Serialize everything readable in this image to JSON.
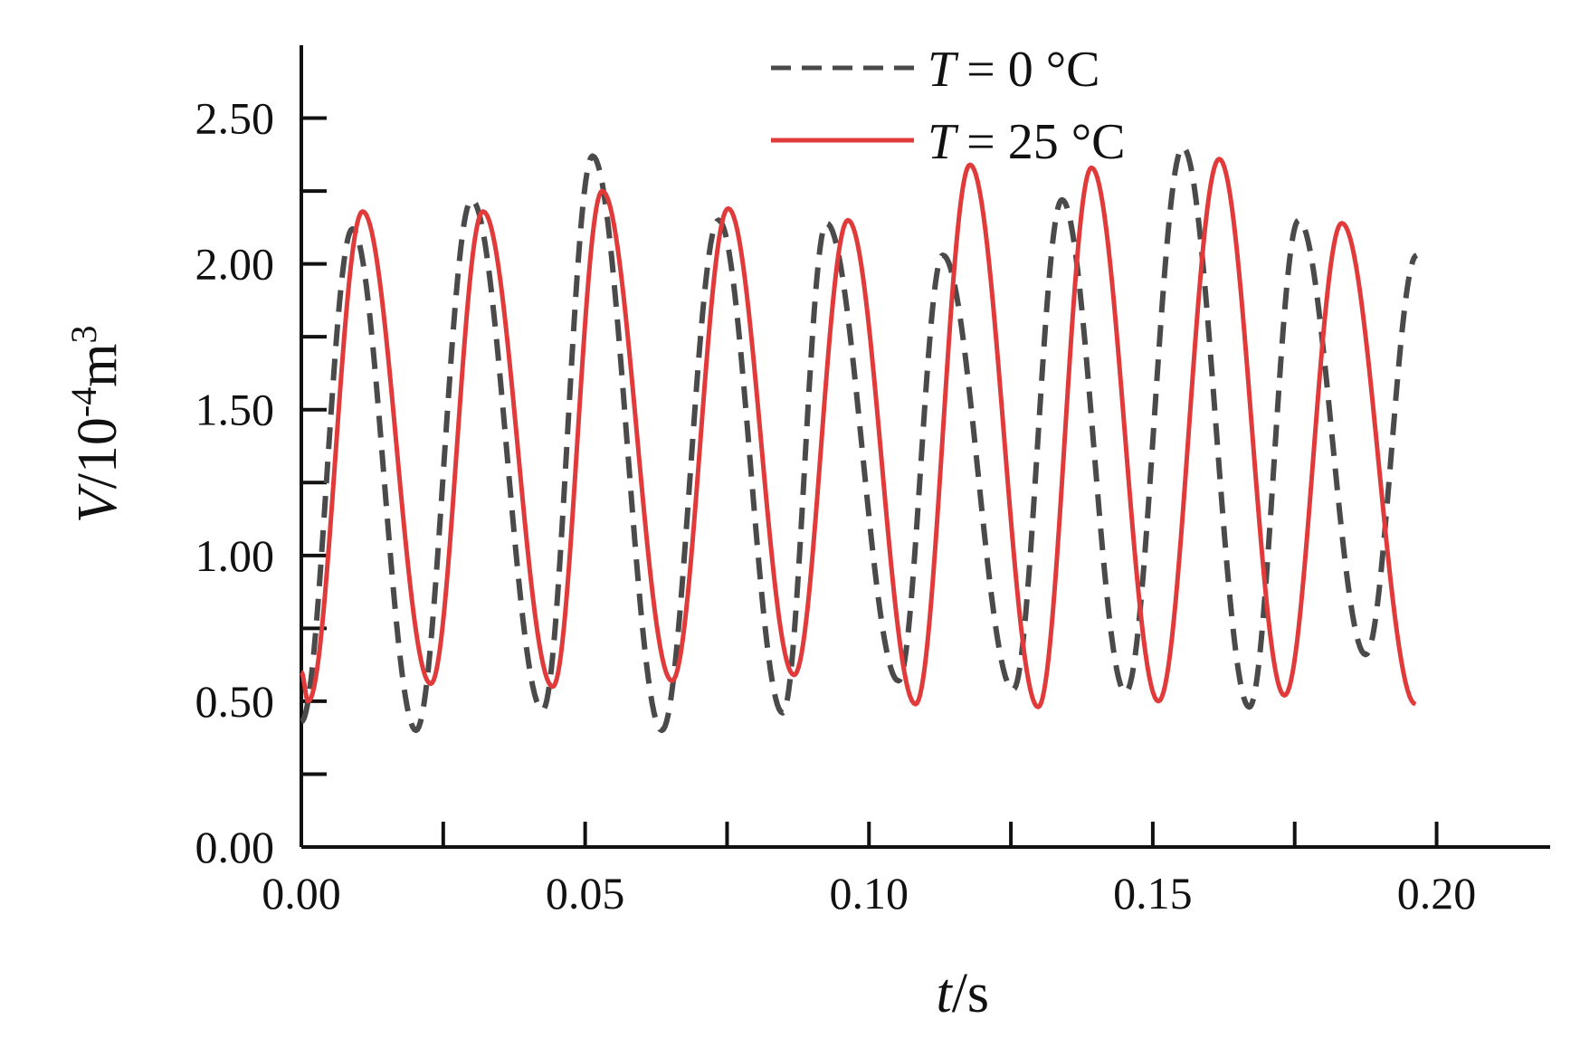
{
  "chart_data": {
    "type": "line",
    "xlabel": {
      "var": "t",
      "unit": "/s"
    },
    "ylabel": {
      "var": "V",
      "unit_base": "/10",
      "unit_exp": "-4",
      "unit_mid": "m",
      "unit_exp2": "3"
    },
    "xlim": [
      0,
      0.22
    ],
    "ylim": [
      0,
      2.75
    ],
    "x_ticks": [
      "0.00",
      "0.05",
      "0.10",
      "0.15",
      "0.20"
    ],
    "x_tick_values": [
      0,
      0.05,
      0.1,
      0.15,
      0.2
    ],
    "x_minor_ticks": [
      0.025,
      0.075,
      0.125,
      0.175
    ],
    "y_ticks": [
      "0.00",
      "0.50",
      "1.00",
      "1.50",
      "2.00",
      "2.50"
    ],
    "y_tick_values": [
      0,
      0.5,
      1.0,
      1.5,
      2.0,
      2.5
    ],
    "y_minor_ticks": [
      0.25,
      0.75,
      1.25,
      1.75,
      2.25
    ],
    "legend_position": "top-right",
    "grid": false,
    "series": [
      {
        "name_var": "T",
        "name_rest": "= 0  °C",
        "color": "#4a4a4a",
        "style": "dashed",
        "x": [
          0.0,
          0.009,
          0.0202,
          0.03,
          0.0425,
          0.0513,
          0.0635,
          0.0735,
          0.0848,
          0.0925,
          0.1052,
          0.113,
          0.1254,
          0.134,
          0.1452,
          0.1553,
          0.167,
          0.1757,
          0.1875,
          0.1965
        ],
        "y": [
          0.43,
          2.12,
          0.4,
          2.22,
          0.47,
          2.37,
          0.4,
          2.15,
          0.46,
          2.14,
          0.57,
          2.03,
          0.54,
          2.22,
          0.53,
          2.4,
          0.48,
          2.15,
          0.66,
          2.03
        ]
      },
      {
        "name_var": "T",
        "name_rest": "= 25 °C",
        "color": "#e03a3a",
        "style": "solid",
        "x": [
          0.0,
          0.0012,
          0.0108,
          0.0228,
          0.032,
          0.0443,
          0.053,
          0.0653,
          0.0752,
          0.0868,
          0.0963,
          0.1082,
          0.1178,
          0.1298,
          0.1392,
          0.151,
          0.1617,
          0.1732,
          0.1833,
          0.1963
        ],
        "y": [
          0.6,
          0.5,
          2.18,
          0.56,
          2.18,
          0.55,
          2.25,
          0.57,
          2.19,
          0.59,
          2.15,
          0.49,
          2.34,
          0.48,
          2.33,
          0.5,
          2.36,
          0.52,
          2.14,
          0.49
        ]
      }
    ]
  }
}
